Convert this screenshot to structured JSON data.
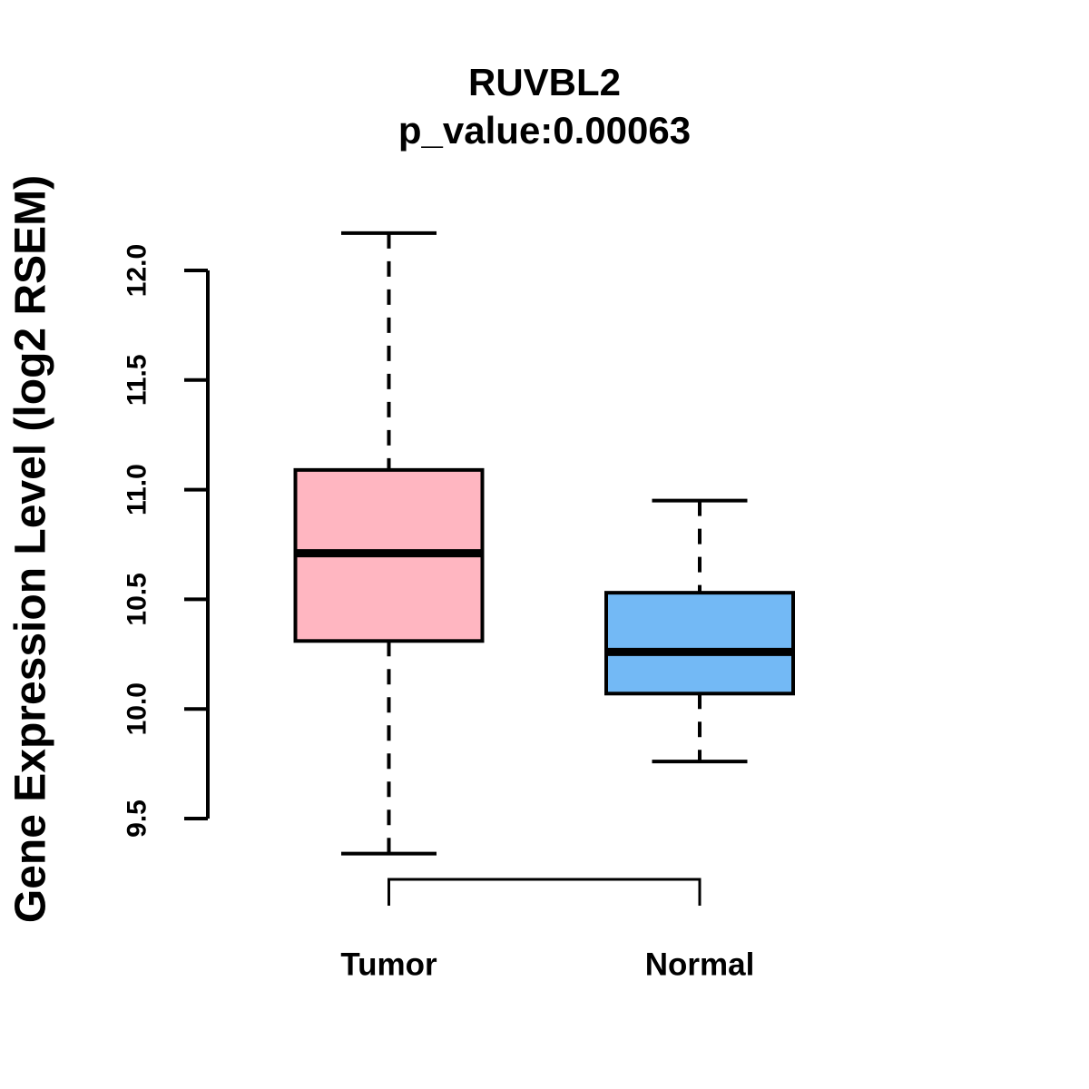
{
  "page": {
    "background": "#FFFFFF",
    "text_color": "#000000"
  },
  "chart_data": {
    "type": "boxplot",
    "title": "RUVBL2",
    "subtitle": "p_value:0.00063",
    "ylabel": "Gene Expression Level (log2 RSEM)",
    "xlabel": "",
    "grid": false,
    "legend": "none",
    "y_axis": {
      "tick_labels": [
        "9.5",
        "10.0",
        "10.5",
        "11.0",
        "11.5",
        "12.0"
      ],
      "tick_values": [
        9.5,
        10.0,
        10.5,
        11.0,
        11.5,
        12.0
      ],
      "range_shown": [
        9.2,
        12.3
      ]
    },
    "categories": [
      "Tumor",
      "Normal"
    ],
    "groups": [
      {
        "label": "Tumor",
        "fill_color": "#FFB6C1",
        "border_color": "#000000",
        "stats": {
          "lower_whisker": 9.34,
          "q1": 10.31,
          "median": 10.71,
          "q3": 11.09,
          "upper_whisker": 12.17
        }
      },
      {
        "label": "Normal",
        "fill_color": "#73B9F5",
        "border_color": "#000000",
        "stats": {
          "lower_whisker": 9.76,
          "q1": 10.07,
          "median": 10.26,
          "q3": 10.53,
          "upper_whisker": 10.95
        }
      }
    ],
    "comparison_bracket": {
      "between": [
        "Tumor",
        "Normal"
      ]
    }
  }
}
